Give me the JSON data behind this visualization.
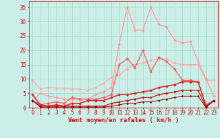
{
  "xlabel": "Vent moyen/en rafales ( km/h )",
  "xlim": [
    -0.5,
    23.5
  ],
  "ylim": [
    0,
    37
  ],
  "yticks": [
    0,
    5,
    10,
    15,
    20,
    25,
    30,
    35
  ],
  "xticks": [
    0,
    1,
    2,
    3,
    4,
    5,
    6,
    7,
    8,
    9,
    10,
    11,
    12,
    13,
    14,
    15,
    16,
    17,
    18,
    19,
    20,
    21,
    22,
    23
  ],
  "bg_color": "#cceee8",
  "grid_color": "#aaddcc",
  "lines": [
    {
      "x": [
        0,
        1,
        2,
        3,
        4,
        5,
        6,
        7,
        8,
        9,
        10,
        11,
        12,
        13,
        14,
        15,
        16,
        17,
        18,
        19,
        20,
        21,
        22,
        23
      ],
      "y": [
        9.5,
        6.5,
        7.0,
        6.8,
        6.8,
        6.5,
        6.5,
        6.0,
        7.0,
        8.5,
        10.5,
        11.5,
        13.5,
        15.0,
        15.5,
        16.5,
        17.0,
        17.0,
        15.5,
        15.0,
        15.0,
        15.0,
        9.5,
        9.5
      ],
      "color": "#ffaaaa",
      "marker": "D",
      "markersize": 2.0,
      "linewidth": 0.9
    },
    {
      "x": [
        0,
        1,
        2,
        3,
        4,
        5,
        6,
        7,
        8,
        9,
        10,
        11,
        12,
        13,
        14,
        15,
        16,
        17,
        18,
        19,
        20,
        21,
        22,
        23
      ],
      "y": [
        2.5,
        5.0,
        4.0,
        3.5,
        3.0,
        3.0,
        3.0,
        3.0,
        4.5,
        5.5,
        7.0,
        22.0,
        35.0,
        27.0,
        27.0,
        35.0,
        29.0,
        28.0,
        23.5,
        22.5,
        23.0,
        16.0,
        10.0,
        4.0
      ],
      "color": "#ff9999",
      "marker": "D",
      "markersize": 2.0,
      "linewidth": 0.9
    },
    {
      "x": [
        0,
        1,
        2,
        3,
        4,
        5,
        6,
        7,
        8,
        9,
        10,
        11,
        12,
        13,
        14,
        15,
        16,
        17,
        18,
        19,
        20,
        21,
        22,
        23
      ],
      "y": [
        2.5,
        1.0,
        1.5,
        2.0,
        1.5,
        3.5,
        3.0,
        3.0,
        3.0,
        3.5,
        4.5,
        15.0,
        17.0,
        14.0,
        20.0,
        12.5,
        17.5,
        16.0,
        13.5,
        9.5,
        9.5,
        9.0,
        1.0,
        2.5
      ],
      "color": "#ff5555",
      "marker": "D",
      "markersize": 2.0,
      "linewidth": 0.9
    },
    {
      "x": [
        0,
        1,
        2,
        3,
        4,
        5,
        6,
        7,
        8,
        9,
        10,
        11,
        12,
        13,
        14,
        15,
        16,
        17,
        18,
        19,
        20,
        21,
        22,
        23
      ],
      "y": [
        4.5,
        1.0,
        0.5,
        1.0,
        0.5,
        1.5,
        1.5,
        2.5,
        2.5,
        2.5,
        3.5,
        4.5,
        4.5,
        5.0,
        5.5,
        6.0,
        7.0,
        7.5,
        8.0,
        9.0,
        9.0,
        9.0,
        0.5,
        2.5
      ],
      "color": "#dd2222",
      "marker": "D",
      "markersize": 2.0,
      "linewidth": 1.1
    },
    {
      "x": [
        0,
        1,
        2,
        3,
        4,
        5,
        6,
        7,
        8,
        9,
        10,
        11,
        12,
        13,
        14,
        15,
        16,
        17,
        18,
        19,
        20,
        21,
        22,
        23
      ],
      "y": [
        2.5,
        0.5,
        0.5,
        0.5,
        0.5,
        0.5,
        0.5,
        0.5,
        0.5,
        0.5,
        1.5,
        2.0,
        2.5,
        3.0,
        3.5,
        3.5,
        4.5,
        5.0,
        5.5,
        6.0,
        6.0,
        6.0,
        0.2,
        2.5
      ],
      "color": "#cc1111",
      "marker": "D",
      "markersize": 1.8,
      "linewidth": 0.9
    },
    {
      "x": [
        0,
        1,
        2,
        3,
        4,
        5,
        6,
        7,
        8,
        9,
        10,
        11,
        12,
        13,
        14,
        15,
        16,
        17,
        18,
        19,
        20,
        21,
        22,
        23
      ],
      "y": [
        2.5,
        0.2,
        0.2,
        0.2,
        0.2,
        0.2,
        0.2,
        0.2,
        0.2,
        0.2,
        0.5,
        1.0,
        1.5,
        1.5,
        2.0,
        2.0,
        2.5,
        3.0,
        3.5,
        4.0,
        4.0,
        4.0,
        0.1,
        2.5
      ],
      "color": "#880000",
      "marker": "D",
      "markersize": 1.5,
      "linewidth": 0.7
    }
  ],
  "xlabel_color": "#cc0000",
  "xlabel_fontsize": 6.5,
  "tick_color": "#cc0000",
  "tick_fontsize": 5.5
}
